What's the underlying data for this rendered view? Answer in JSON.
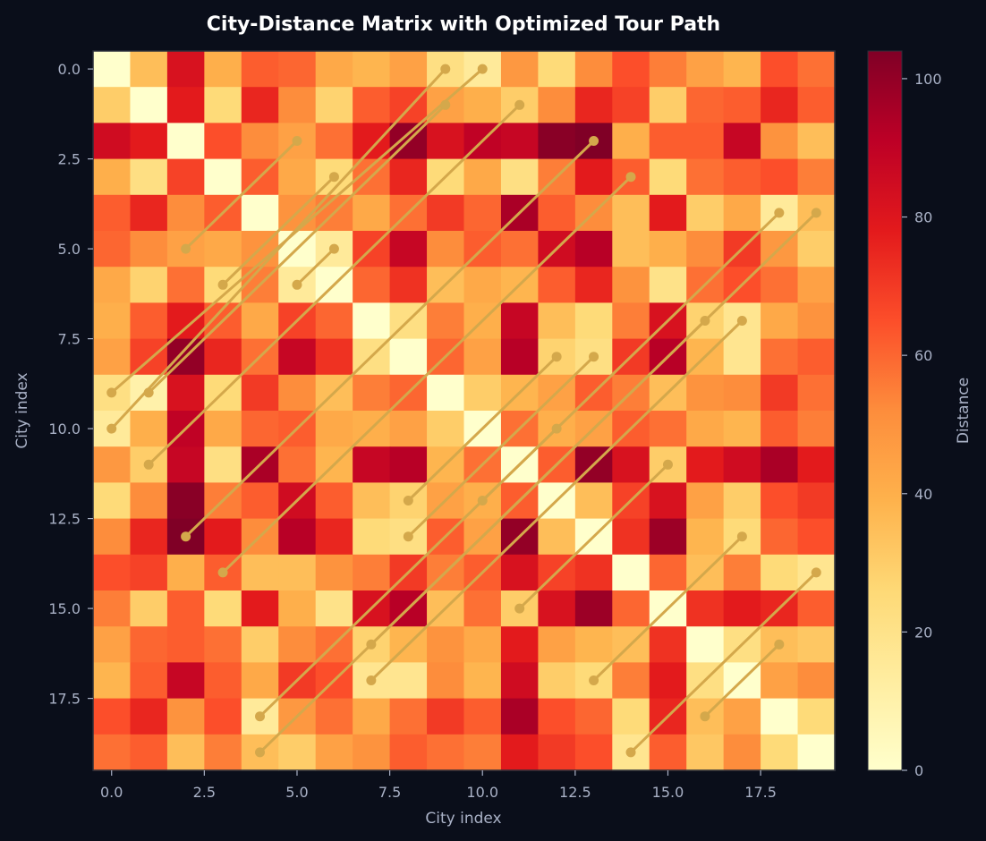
{
  "chart_data": {
    "type": "heatmap",
    "title": "City-Distance Matrix with Optimized Tour Path",
    "xlabel": "City index",
    "ylabel": "City index",
    "colorbar_label": "Distance",
    "colormap": "YlOrRd",
    "vmin": 0,
    "vmax": 104,
    "grid": false,
    "x_ticks": [
      "0.0",
      "2.5",
      "5.0",
      "7.5",
      "10.0",
      "12.5",
      "15.0",
      "17.5"
    ],
    "y_ticks": [
      "0.0",
      "2.5",
      "5.0",
      "7.5",
      "10.0",
      "12.5",
      "15.0",
      "17.5"
    ],
    "colorbar_ticks": [
      "0",
      "20",
      "40",
      "60",
      "80",
      "100"
    ],
    "matrix": [
      [
        0,
        35,
        82,
        40,
        62,
        60,
        42,
        38,
        45,
        22,
        15,
        48,
        25,
        52,
        65,
        55,
        45,
        38,
        65,
        58
      ],
      [
        30,
        0,
        78,
        25,
        75,
        52,
        28,
        62,
        68,
        45,
        40,
        30,
        52,
        75,
        68,
        30,
        60,
        62,
        75,
        62
      ],
      [
        85,
        78,
        0,
        65,
        52,
        45,
        58,
        78,
        100,
        82,
        90,
        88,
        102,
        104,
        40,
        62,
        62,
        88,
        50,
        35
      ],
      [
        40,
        22,
        68,
        0,
        62,
        42,
        25,
        58,
        75,
        25,
        42,
        22,
        55,
        78,
        62,
        25,
        58,
        62,
        65,
        55
      ],
      [
        62,
        75,
        52,
        62,
        0,
        50,
        55,
        42,
        58,
        70,
        60,
        95,
        62,
        52,
        35,
        78,
        30,
        42,
        15,
        35
      ],
      [
        60,
        52,
        45,
        42,
        50,
        0,
        15,
        68,
        88,
        52,
        62,
        58,
        85,
        92,
        35,
        40,
        52,
        70,
        48,
        30
      ],
      [
        42,
        28,
        58,
        25,
        55,
        15,
        0,
        60,
        72,
        35,
        42,
        38,
        62,
        75,
        50,
        20,
        58,
        65,
        58,
        45
      ],
      [
        40,
        62,
        78,
        62,
        42,
        68,
        60,
        0,
        22,
        55,
        40,
        88,
        35,
        25,
        55,
        82,
        28,
        18,
        42,
        50
      ],
      [
        45,
        68,
        100,
        75,
        58,
        88,
        72,
        22,
        0,
        60,
        45,
        92,
        28,
        22,
        70,
        92,
        38,
        18,
        58,
        62
      ],
      [
        22,
        10,
        82,
        25,
        70,
        52,
        35,
        55,
        60,
        0,
        30,
        38,
        45,
        62,
        55,
        35,
        50,
        52,
        70,
        58
      ],
      [
        15,
        40,
        90,
        42,
        60,
        62,
        42,
        40,
        45,
        30,
        0,
        58,
        40,
        45,
        62,
        58,
        42,
        38,
        62,
        55
      ],
      [
        48,
        30,
        88,
        22,
        95,
        58,
        38,
        88,
        92,
        38,
        58,
        0,
        62,
        100,
        82,
        30,
        78,
        85,
        95,
        78
      ],
      [
        25,
        52,
        102,
        55,
        62,
        85,
        62,
        35,
        28,
        45,
        40,
        62,
        0,
        35,
        68,
        82,
        45,
        30,
        65,
        70
      ],
      [
        52,
        75,
        104,
        78,
        52,
        92,
        75,
        25,
        22,
        62,
        45,
        100,
        35,
        0,
        72,
        98,
        38,
        25,
        60,
        65
      ],
      [
        65,
        68,
        40,
        62,
        35,
        35,
        50,
        55,
        70,
        55,
        62,
        82,
        68,
        72,
        0,
        60,
        35,
        55,
        25,
        18
      ],
      [
        55,
        30,
        62,
        25,
        78,
        40,
        20,
        82,
        92,
        35,
        58,
        30,
        82,
        98,
        60,
        0,
        72,
        78,
        75,
        62
      ],
      [
        45,
        60,
        62,
        58,
        30,
        52,
        58,
        28,
        38,
        50,
        42,
        78,
        45,
        38,
        35,
        72,
        0,
        22,
        35,
        32
      ],
      [
        38,
        62,
        88,
        62,
        42,
        70,
        65,
        18,
        18,
        52,
        38,
        85,
        30,
        25,
        55,
        78,
        22,
        0,
        45,
        52
      ],
      [
        65,
        75,
        50,
        65,
        15,
        48,
        58,
        42,
        58,
        70,
        62,
        95,
        65,
        60,
        25,
        75,
        35,
        45,
        0,
        25
      ],
      [
        58,
        62,
        35,
        55,
        35,
        30,
        45,
        50,
        62,
        58,
        55,
        78,
        70,
        65,
        18,
        62,
        32,
        52,
        25,
        0
      ]
    ],
    "tour_path": {
      "color": "#d4a84b",
      "segments": [
        [
          [
            10,
            0
          ],
          [
            0,
            9
          ]
        ],
        [
          [
            9,
            0
          ],
          [
            0,
            10
          ]
        ],
        [
          [
            11,
            1
          ],
          [
            1,
            11
          ]
        ],
        [
          [
            9,
            1
          ],
          [
            1,
            9
          ]
        ],
        [
          [
            5,
            2
          ],
          [
            2,
            5
          ]
        ],
        [
          [
            6,
            3
          ],
          [
            3,
            6
          ]
        ],
        [
          [
            6,
            5
          ],
          [
            5,
            6
          ]
        ],
        [
          [
            13,
            2
          ],
          [
            2,
            13
          ]
        ],
        [
          [
            14,
            3
          ],
          [
            3,
            14
          ]
        ],
        [
          [
            18,
            4
          ],
          [
            4,
            18
          ]
        ],
        [
          [
            19,
            4
          ],
          [
            4,
            19
          ]
        ],
        [
          [
            16,
            7
          ],
          [
            7,
            16
          ]
        ],
        [
          [
            17,
            7
          ],
          [
            7,
            17
          ]
        ],
        [
          [
            12,
            8
          ],
          [
            8,
            12
          ]
        ],
        [
          [
            13,
            8
          ],
          [
            8,
            13
          ]
        ],
        [
          [
            12,
            10
          ],
          [
            10,
            12
          ]
        ],
        [
          [
            15,
            11
          ],
          [
            11,
            15
          ]
        ],
        [
          [
            17,
            13
          ],
          [
            13,
            17
          ]
        ],
        [
          [
            19,
            14
          ],
          [
            14,
            19
          ]
        ],
        [
          [
            18,
            16
          ],
          [
            16,
            18
          ]
        ]
      ]
    }
  }
}
